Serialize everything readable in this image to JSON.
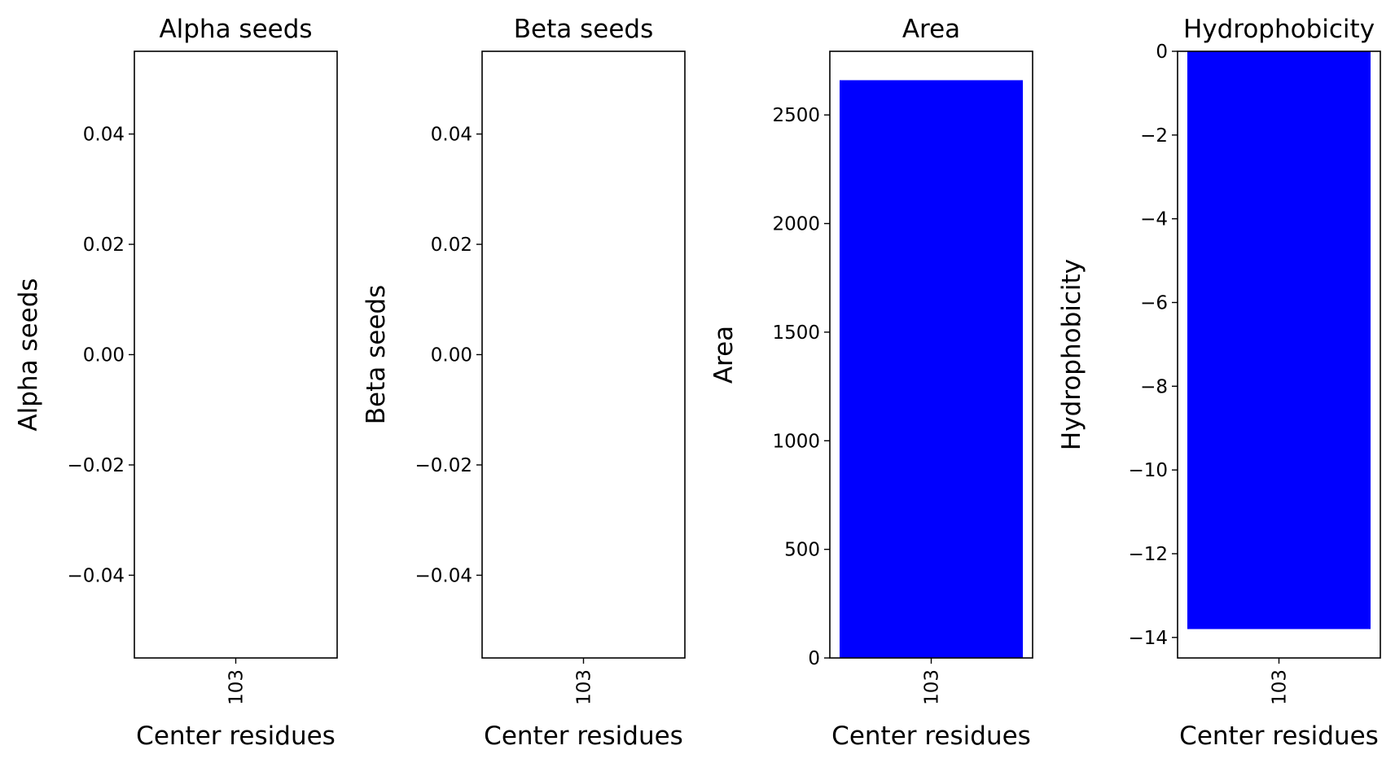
{
  "chart_data": [
    {
      "type": "bar",
      "title": "Alpha seeds",
      "xlabel": "Center residues",
      "ylabel": "Alpha seeds",
      "categories": [
        "103"
      ],
      "values": [
        0
      ],
      "ylim": [
        -0.055,
        0.055
      ],
      "yticks": [
        0.04,
        0.02,
        0.0,
        -0.02,
        -0.04
      ],
      "ytick_labels": [
        "0.04",
        "0.02",
        "0.00",
        "−0.02",
        "−0.04"
      ],
      "color": "#0000ff",
      "grid": false
    },
    {
      "type": "bar",
      "title": "Beta seeds",
      "xlabel": "Center residues",
      "ylabel": "Beta seeds",
      "categories": [
        "103"
      ],
      "values": [
        0
      ],
      "ylim": [
        -0.055,
        0.055
      ],
      "yticks": [
        0.04,
        0.02,
        0.0,
        -0.02,
        -0.04
      ],
      "ytick_labels": [
        "0.04",
        "0.02",
        "0.00",
        "−0.02",
        "−0.04"
      ],
      "color": "#0000ff",
      "grid": false
    },
    {
      "type": "bar",
      "title": "Area",
      "xlabel": "Center residues",
      "ylabel": "Area",
      "categories": [
        "103"
      ],
      "values": [
        2660
      ],
      "ylim": [
        0,
        2793
      ],
      "yticks": [
        0,
        500,
        1000,
        1500,
        2000,
        2500
      ],
      "ytick_labels": [
        "0",
        "500",
        "1000",
        "1500",
        "2000",
        "2500"
      ],
      "color": "#0000ff",
      "grid": false
    },
    {
      "type": "bar",
      "title": "Hydrophobicity",
      "xlabel": "Center residues",
      "ylabel": "Hydrophobicity",
      "categories": [
        "103"
      ],
      "values": [
        -13.8
      ],
      "ylim": [
        -14.49,
        0
      ],
      "yticks": [
        0,
        -2,
        -4,
        -6,
        -8,
        -10,
        -12,
        -14
      ],
      "ytick_labels": [
        "0",
        "−2",
        "−4",
        "−6",
        "−8",
        "−10",
        "−12",
        "−14"
      ],
      "color": "#0000ff",
      "grid": false
    }
  ]
}
